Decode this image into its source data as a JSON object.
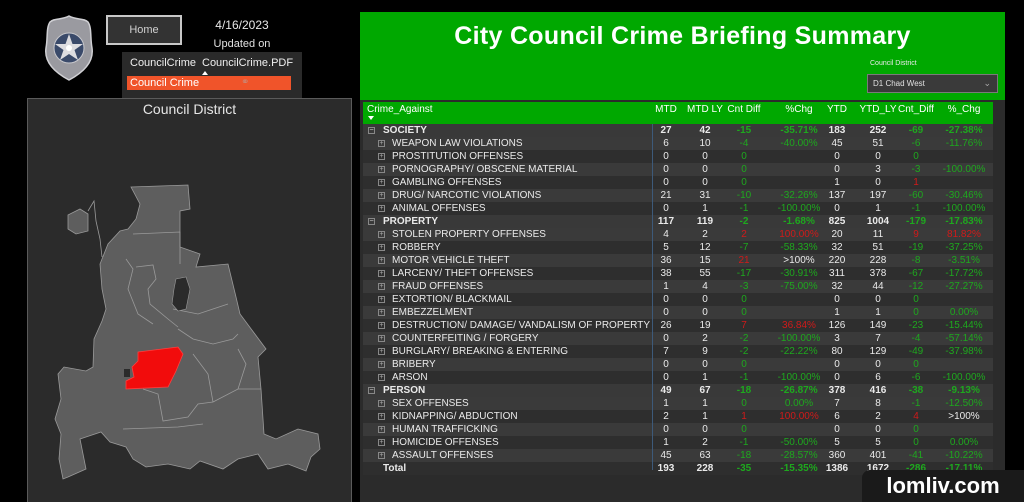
{
  "header": {
    "home_label": "Home",
    "date": "4/16/2023",
    "updated_label": "Updated on"
  },
  "nav": {
    "tabs": [
      "CouncilCrime",
      "CouncilCrime.PDF"
    ],
    "selected_item": "Council Crime"
  },
  "map": {
    "title": "Council District",
    "highlight_color": "#f20c0c",
    "base_color": "#5e5e5e"
  },
  "report": {
    "title": "City Council Crime Briefing Summary",
    "district_filter_label": "Council District",
    "district_filter_value": "D1 Chad West",
    "accent_color": "#00a800"
  },
  "table": {
    "columns": [
      "Crime_Against",
      "MTD",
      "MTD LY",
      "Cnt Diff",
      "%Chg",
      "YTD",
      "YTD_LY",
      "Cnt_Diff",
      "%_Chg"
    ],
    "rows": [
      {
        "type": "grp",
        "name": "SOCIETY",
        "mtd": "27",
        "mtd_ly": "42",
        "cnt": "-15",
        "pct": "-35.71%",
        "ytd": "183",
        "ytd_ly": "252",
        "cnt2": "-69",
        "pct2": "-27.38%"
      },
      {
        "type": "leaf",
        "name": "WEAPON LAW VIOLATIONS",
        "mtd": "6",
        "mtd_ly": "10",
        "cnt": "-4",
        "pct": "-40.00%",
        "ytd": "45",
        "ytd_ly": "51",
        "cnt2": "-6",
        "pct2": "-11.76%"
      },
      {
        "type": "leaf",
        "name": "PROSTITUTION OFFENSES",
        "mtd": "0",
        "mtd_ly": "0",
        "cnt": "0",
        "pct": "",
        "ytd": "0",
        "ytd_ly": "0",
        "cnt2": "0",
        "pct2": ""
      },
      {
        "type": "leaf",
        "name": "PORNOGRAPHY/ OBSCENE MATERIAL",
        "mtd": "0",
        "mtd_ly": "0",
        "cnt": "0",
        "pct": "",
        "ytd": "0",
        "ytd_ly": "3",
        "cnt2": "-3",
        "pct2": "-100.00%"
      },
      {
        "type": "leaf",
        "name": "GAMBLING OFFENSES",
        "mtd": "0",
        "mtd_ly": "0",
        "cnt": "0",
        "pct": "",
        "ytd": "1",
        "ytd_ly": "0",
        "cnt2": "1",
        "pct2": ""
      },
      {
        "type": "leaf",
        "name": "DRUG/ NARCOTIC VIOLATIONS",
        "mtd": "21",
        "mtd_ly": "31",
        "cnt": "-10",
        "pct": "-32.26%",
        "ytd": "137",
        "ytd_ly": "197",
        "cnt2": "-60",
        "pct2": "-30.46%"
      },
      {
        "type": "leaf",
        "name": "ANIMAL OFFENSES",
        "mtd": "0",
        "mtd_ly": "1",
        "cnt": "-1",
        "pct": "-100.00%",
        "ytd": "0",
        "ytd_ly": "1",
        "cnt2": "-1",
        "pct2": "-100.00%"
      },
      {
        "type": "grp",
        "name": "PROPERTY",
        "mtd": "117",
        "mtd_ly": "119",
        "cnt": "-2",
        "pct": "-1.68%",
        "ytd": "825",
        "ytd_ly": "1004",
        "cnt2": "-179",
        "pct2": "-17.83%"
      },
      {
        "type": "leaf",
        "name": "STOLEN PROPERTY OFFENSES",
        "mtd": "4",
        "mtd_ly": "2",
        "cnt": "2",
        "pct": "100.00%",
        "ytd": "20",
        "ytd_ly": "11",
        "cnt2": "9",
        "pct2": "81.82%"
      },
      {
        "type": "leaf",
        "name": "ROBBERY",
        "mtd": "5",
        "mtd_ly": "12",
        "cnt": "-7",
        "pct": "-58.33%",
        "ytd": "32",
        "ytd_ly": "51",
        "cnt2": "-19",
        "pct2": "-37.25%"
      },
      {
        "type": "leaf",
        "name": "MOTOR VEHICLE THEFT",
        "mtd": "36",
        "mtd_ly": "15",
        "cnt": "21",
        "pct": ">100%",
        "ytd": "220",
        "ytd_ly": "228",
        "cnt2": "-8",
        "pct2": "-3.51%"
      },
      {
        "type": "leaf",
        "name": "LARCENY/ THEFT OFFENSES",
        "mtd": "38",
        "mtd_ly": "55",
        "cnt": "-17",
        "pct": "-30.91%",
        "ytd": "311",
        "ytd_ly": "378",
        "cnt2": "-67",
        "pct2": "-17.72%"
      },
      {
        "type": "leaf",
        "name": "FRAUD OFFENSES",
        "mtd": "1",
        "mtd_ly": "4",
        "cnt": "-3",
        "pct": "-75.00%",
        "ytd": "32",
        "ytd_ly": "44",
        "cnt2": "-12",
        "pct2": "-27.27%"
      },
      {
        "type": "leaf",
        "name": "EXTORTION/ BLACKMAIL",
        "mtd": "0",
        "mtd_ly": "0",
        "cnt": "0",
        "pct": "",
        "ytd": "0",
        "ytd_ly": "0",
        "cnt2": "0",
        "pct2": ""
      },
      {
        "type": "leaf",
        "name": "EMBEZZELMENT",
        "mtd": "0",
        "mtd_ly": "0",
        "cnt": "0",
        "pct": "",
        "ytd": "1",
        "ytd_ly": "1",
        "cnt2": "0",
        "pct2": "0.00%"
      },
      {
        "type": "leaf",
        "name": "DESTRUCTION/ DAMAGE/ VANDALISM OF PROPERTY",
        "mtd": "26",
        "mtd_ly": "19",
        "cnt": "7",
        "pct": "36.84%",
        "ytd": "126",
        "ytd_ly": "149",
        "cnt2": "-23",
        "pct2": "-15.44%"
      },
      {
        "type": "leaf",
        "name": "COUNTERFEITING / FORGERY",
        "mtd": "0",
        "mtd_ly": "2",
        "cnt": "-2",
        "pct": "-100.00%",
        "ytd": "3",
        "ytd_ly": "7",
        "cnt2": "-4",
        "pct2": "-57.14%"
      },
      {
        "type": "leaf",
        "name": "BURGLARY/ BREAKING & ENTERING",
        "mtd": "7",
        "mtd_ly": "9",
        "cnt": "-2",
        "pct": "-22.22%",
        "ytd": "80",
        "ytd_ly": "129",
        "cnt2": "-49",
        "pct2": "-37.98%"
      },
      {
        "type": "leaf",
        "name": "BRIBERY",
        "mtd": "0",
        "mtd_ly": "0",
        "cnt": "0",
        "pct": "",
        "ytd": "0",
        "ytd_ly": "0",
        "cnt2": "0",
        "pct2": ""
      },
      {
        "type": "leaf",
        "name": "ARSON",
        "mtd": "0",
        "mtd_ly": "1",
        "cnt": "-1",
        "pct": "-100.00%",
        "ytd": "0",
        "ytd_ly": "6",
        "cnt2": "-6",
        "pct2": "-100.00%"
      },
      {
        "type": "grp",
        "name": "PERSON",
        "mtd": "49",
        "mtd_ly": "67",
        "cnt": "-18",
        "pct": "-26.87%",
        "ytd": "378",
        "ytd_ly": "416",
        "cnt2": "-38",
        "pct2": "-9.13%"
      },
      {
        "type": "leaf",
        "name": "SEX OFFENSES",
        "mtd": "1",
        "mtd_ly": "1",
        "cnt": "0",
        "pct": "0.00%",
        "ytd": "7",
        "ytd_ly": "8",
        "cnt2": "-1",
        "pct2": "-12.50%"
      },
      {
        "type": "leaf",
        "name": "KIDNAPPING/ ABDUCTION",
        "mtd": "2",
        "mtd_ly": "1",
        "cnt": "1",
        "pct": "100.00%",
        "ytd": "6",
        "ytd_ly": "2",
        "cnt2": "4",
        "pct2": ">100%"
      },
      {
        "type": "leaf",
        "name": "HUMAN TRAFFICKING",
        "mtd": "0",
        "mtd_ly": "0",
        "cnt": "0",
        "pct": "",
        "ytd": "0",
        "ytd_ly": "0",
        "cnt2": "0",
        "pct2": ""
      },
      {
        "type": "leaf",
        "name": "HOMICIDE OFFENSES",
        "mtd": "1",
        "mtd_ly": "2",
        "cnt": "-1",
        "pct": "-50.00%",
        "ytd": "5",
        "ytd_ly": "5",
        "cnt2": "0",
        "pct2": "0.00%"
      },
      {
        "type": "leaf",
        "name": "ASSAULT OFFENSES",
        "mtd": "45",
        "mtd_ly": "63",
        "cnt": "-18",
        "pct": "-28.57%",
        "ytd": "360",
        "ytd_ly": "401",
        "cnt2": "-41",
        "pct2": "-10.22%"
      },
      {
        "type": "total",
        "name": "Total",
        "mtd": "193",
        "mtd_ly": "228",
        "cnt": "-35",
        "pct": "-15.35%",
        "ytd": "1386",
        "ytd_ly": "1672",
        "cnt2": "-286",
        "pct2": "-17.11%"
      }
    ]
  },
  "watermark": "lomliv.com"
}
